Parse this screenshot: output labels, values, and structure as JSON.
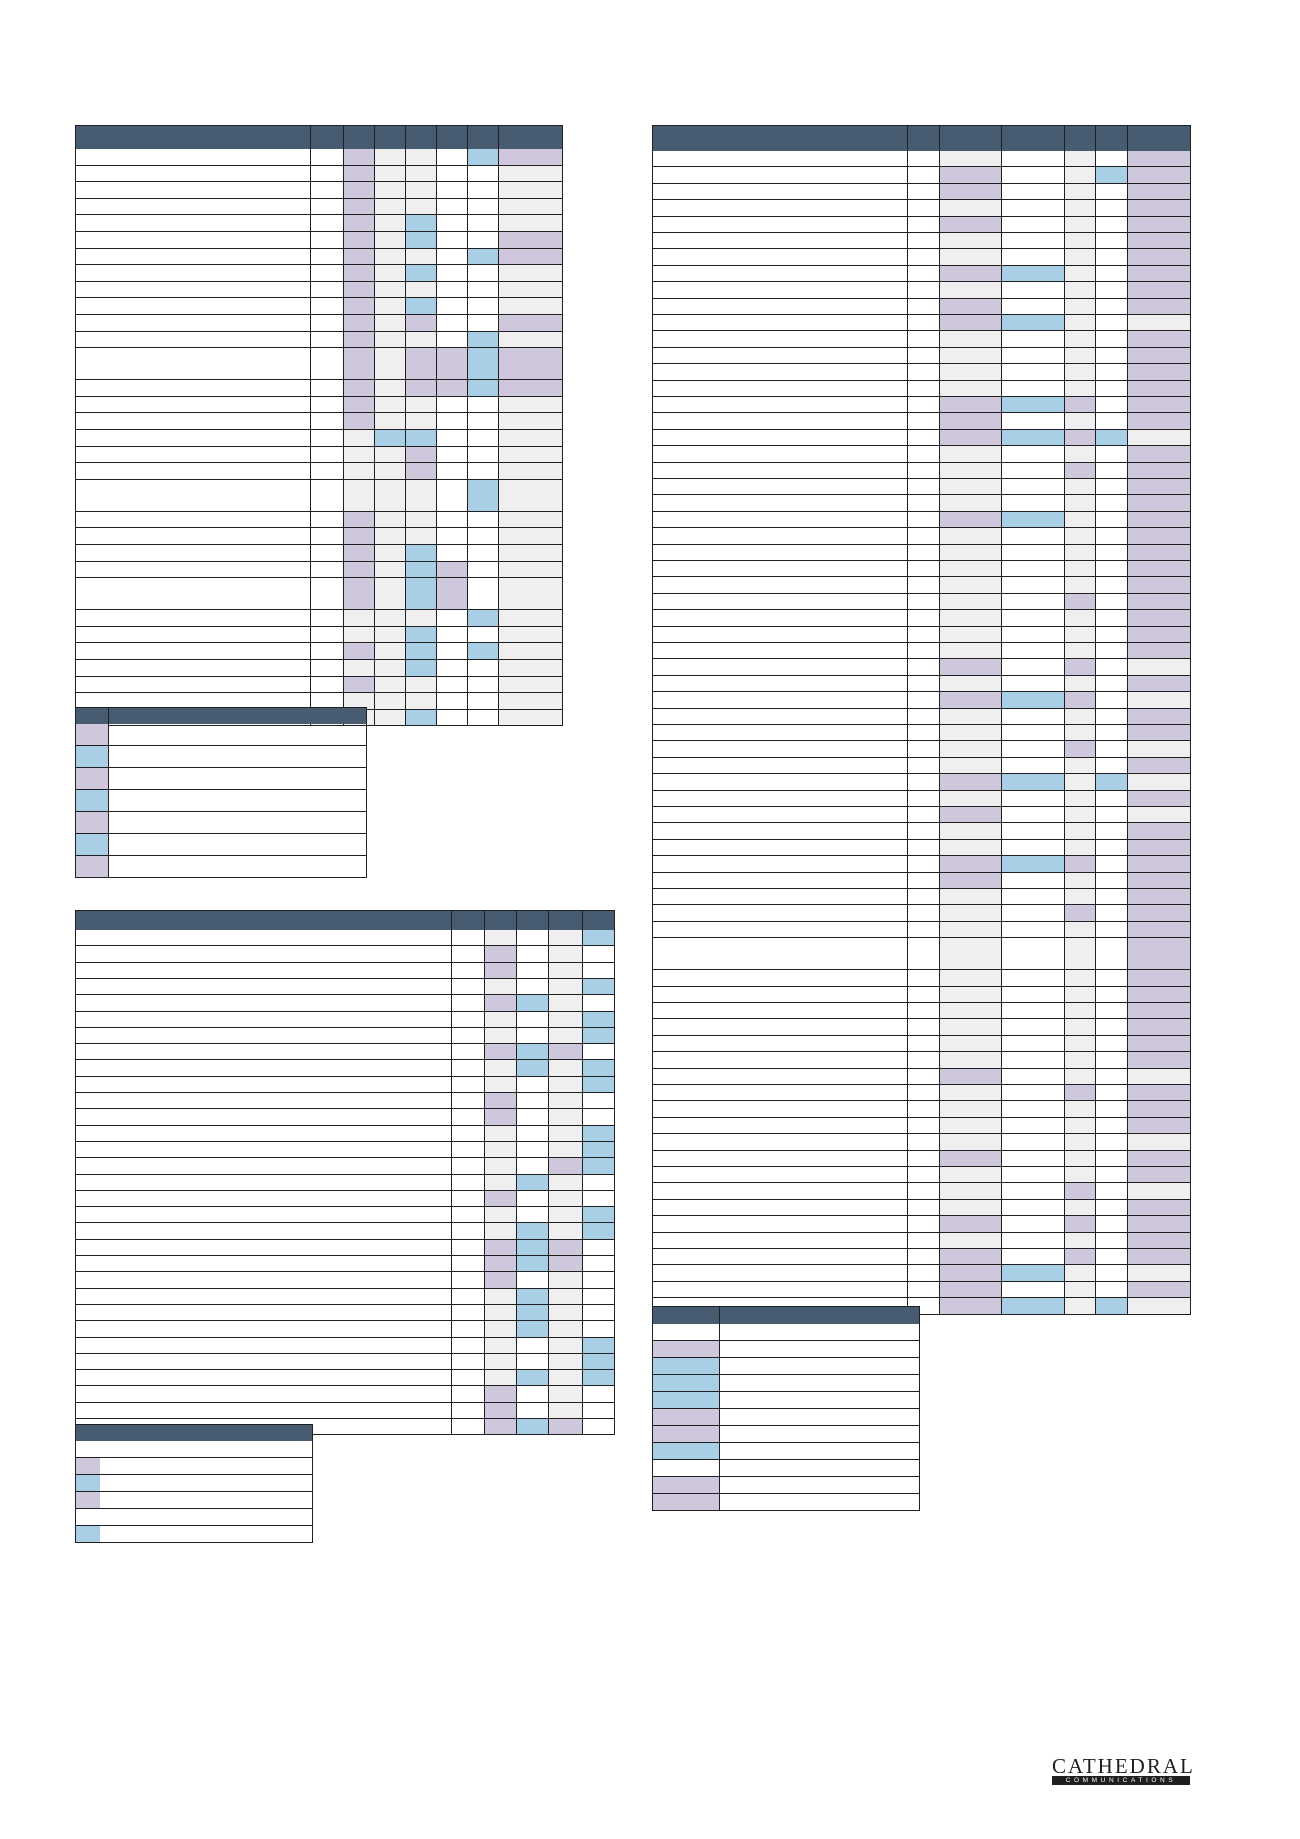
{
  "colors": {
    "header": "#475c70",
    "purple": "#cfc8dd",
    "blue": "#a9cfe6",
    "grey": "#efefef",
    "line": "#1f1f1f"
  },
  "tables": [
    {
      "name": "table-top-left",
      "rows": 32,
      "columns": 8,
      "cells": [
        [
          "",
          "",
          "P",
          "G",
          "G",
          "W",
          "B",
          "P"
        ],
        [
          "",
          "",
          "P",
          "G",
          "G",
          "W",
          "W",
          "G"
        ],
        [
          "",
          "",
          "P",
          "G",
          "G",
          "W",
          "W",
          "G"
        ],
        [
          "",
          "",
          "P",
          "G",
          "G",
          "W",
          "W",
          "G"
        ],
        [
          "",
          "",
          "P",
          "G",
          "B",
          "W",
          "W",
          "G"
        ],
        [
          "",
          "",
          "P",
          "G",
          "B",
          "W",
          "W",
          "P"
        ],
        [
          "",
          "",
          "P",
          "G",
          "G",
          "W",
          "B",
          "P"
        ],
        [
          "",
          "",
          "P",
          "G",
          "B",
          "W",
          "W",
          "G"
        ],
        [
          "",
          "",
          "P",
          "G",
          "G",
          "W",
          "W",
          "G"
        ],
        [
          "",
          "",
          "P",
          "G",
          "B",
          "W",
          "W",
          "G"
        ],
        [
          "",
          "",
          "P",
          "G",
          "P",
          "W",
          "W",
          "P"
        ],
        [
          "",
          "",
          "P",
          "G",
          "G",
          "W",
          "B",
          "G"
        ],
        [
          "",
          "",
          "P",
          "G",
          "P",
          "P",
          "B",
          "P"
        ],
        [
          "",
          "",
          "P",
          "G",
          "P",
          "P",
          "B",
          "P"
        ],
        [
          "",
          "",
          "P",
          "G",
          "G",
          "W",
          "W",
          "G"
        ],
        [
          "",
          "",
          "P",
          "G",
          "G",
          "W",
          "W",
          "G"
        ],
        [
          "",
          "",
          "G",
          "B",
          "B",
          "W",
          "W",
          "G"
        ],
        [
          "",
          "",
          "G",
          "G",
          "P",
          "W",
          "W",
          "G"
        ],
        [
          "",
          "",
          "G",
          "G",
          "P",
          "W",
          "W",
          "G"
        ],
        [
          "",
          "",
          "G",
          "G",
          "G",
          "W",
          "B",
          "G"
        ],
        [
          "",
          "",
          "P",
          "G",
          "G",
          "W",
          "W",
          "G"
        ],
        [
          "",
          "",
          "P",
          "G",
          "G",
          "W",
          "W",
          "G"
        ],
        [
          "",
          "",
          "P",
          "G",
          "B",
          "W",
          "W",
          "G"
        ],
        [
          "",
          "",
          "P",
          "G",
          "B",
          "P",
          "W",
          "G"
        ],
        [
          "",
          "",
          "P",
          "G",
          "B",
          "P",
          "W",
          "G"
        ],
        [
          "",
          "",
          "G",
          "G",
          "G",
          "W",
          "B",
          "G"
        ],
        [
          "",
          "",
          "G",
          "G",
          "B",
          "W",
          "W",
          "G"
        ],
        [
          "",
          "",
          "P",
          "G",
          "B",
          "W",
          "B",
          "G"
        ],
        [
          "",
          "",
          "G",
          "G",
          "B",
          "W",
          "W",
          "G"
        ],
        [
          "",
          "",
          "P",
          "G",
          "G",
          "W",
          "W",
          "G"
        ],
        [
          "",
          "",
          "G",
          "G",
          "G",
          "W",
          "W",
          "G"
        ],
        [
          "",
          "",
          "G",
          "G",
          "B",
          "W",
          "W",
          "G"
        ]
      ]
    }
  ],
  "legend_top_left": [
    "P",
    "B",
    "P",
    "B",
    "P",
    "B",
    "P"
  ],
  "table_bottom_left_cells": [
    [
      "",
      "",
      "G",
      "W",
      "G",
      "B"
    ],
    [
      "",
      "",
      "P",
      "W",
      "G",
      "W"
    ],
    [
      "",
      "",
      "P",
      "W",
      "G",
      "W"
    ],
    [
      "",
      "",
      "G",
      "W",
      "G",
      "B"
    ],
    [
      "",
      "",
      "P",
      "B",
      "G",
      "W"
    ],
    [
      "",
      "",
      "G",
      "W",
      "G",
      "B"
    ],
    [
      "",
      "",
      "G",
      "W",
      "G",
      "B"
    ],
    [
      "",
      "",
      "P",
      "B",
      "P",
      "W"
    ],
    [
      "",
      "",
      "G",
      "B",
      "G",
      "B"
    ],
    [
      "",
      "",
      "G",
      "W",
      "G",
      "B"
    ],
    [
      "",
      "",
      "P",
      "W",
      "G",
      "W"
    ],
    [
      "",
      "",
      "P",
      "W",
      "G",
      "W"
    ],
    [
      "",
      "",
      "G",
      "W",
      "G",
      "B"
    ],
    [
      "",
      "",
      "G",
      "W",
      "G",
      "B"
    ],
    [
      "",
      "",
      "G",
      "W",
      "P",
      "B"
    ],
    [
      "",
      "",
      "G",
      "B",
      "G",
      "W"
    ],
    [
      "",
      "",
      "P",
      "W",
      "G",
      "W"
    ],
    [
      "",
      "",
      "G",
      "W",
      "G",
      "B"
    ],
    [
      "",
      "",
      "G",
      "B",
      "G",
      "B"
    ],
    [
      "",
      "",
      "P",
      "B",
      "P",
      "W"
    ],
    [
      "",
      "",
      "P",
      "B",
      "P",
      "W"
    ],
    [
      "",
      "",
      "P",
      "W",
      "G",
      "W"
    ],
    [
      "",
      "",
      "G",
      "B",
      "G",
      "W"
    ],
    [
      "",
      "",
      "G",
      "B",
      "G",
      "W"
    ],
    [
      "",
      "",
      "G",
      "B",
      "G",
      "W"
    ],
    [
      "",
      "",
      "G",
      "W",
      "G",
      "B"
    ],
    [
      "",
      "",
      "G",
      "W",
      "G",
      "B"
    ],
    [
      "",
      "",
      "G",
      "B",
      "G",
      "B"
    ],
    [
      "",
      "",
      "P",
      "W",
      "G",
      "W"
    ],
    [
      "",
      "",
      "P",
      "W",
      "G",
      "W"
    ],
    [
      "",
      "",
      "P",
      "B",
      "P",
      "W"
    ]
  ],
  "legend_bottom_left": [
    "",
    "P",
    "B",
    "P",
    "",
    "B"
  ],
  "table_right_cells": [
    [
      "",
      "",
      "G",
      "W",
      "G",
      "W",
      "P"
    ],
    [
      "",
      "",
      "P",
      "W",
      "G",
      "B",
      "P"
    ],
    [
      "",
      "",
      "P",
      "W",
      "G",
      "W",
      "P"
    ],
    [
      "",
      "",
      "G",
      "W",
      "G",
      "W",
      "P"
    ],
    [
      "",
      "",
      "P",
      "W",
      "G",
      "W",
      "P"
    ],
    [
      "",
      "",
      "G",
      "W",
      "G",
      "W",
      "P"
    ],
    [
      "",
      "",
      "G",
      "W",
      "G",
      "W",
      "P"
    ],
    [
      "",
      "",
      "P",
      "B",
      "G",
      "W",
      "P"
    ],
    [
      "",
      "",
      "G",
      "W",
      "G",
      "W",
      "P"
    ],
    [
      "",
      "",
      "P",
      "W",
      "G",
      "W",
      "P"
    ],
    [
      "",
      "",
      "P",
      "B",
      "G",
      "W",
      "G"
    ],
    [
      "",
      "",
      "G",
      "W",
      "G",
      "W",
      "P"
    ],
    [
      "",
      "",
      "G",
      "W",
      "G",
      "W",
      "P"
    ],
    [
      "",
      "",
      "G",
      "W",
      "G",
      "W",
      "P"
    ],
    [
      "",
      "",
      "G",
      "W",
      "G",
      "W",
      "P"
    ],
    [
      "",
      "",
      "P",
      "B",
      "P",
      "W",
      "P"
    ],
    [
      "",
      "",
      "P",
      "W",
      "G",
      "W",
      "P"
    ],
    [
      "",
      "",
      "P",
      "B",
      "P",
      "B",
      "G"
    ],
    [
      "",
      "",
      "G",
      "W",
      "G",
      "W",
      "P"
    ],
    [
      "",
      "",
      "G",
      "W",
      "P",
      "W",
      "P"
    ],
    [
      "",
      "",
      "G",
      "W",
      "G",
      "W",
      "P"
    ],
    [
      "",
      "",
      "G",
      "W",
      "G",
      "W",
      "P"
    ],
    [
      "",
      "",
      "P",
      "B",
      "G",
      "W",
      "P"
    ],
    [
      "",
      "",
      "G",
      "W",
      "G",
      "W",
      "P"
    ],
    [
      "",
      "",
      "G",
      "W",
      "G",
      "W",
      "P"
    ],
    [
      "",
      "",
      "G",
      "W",
      "G",
      "W",
      "P"
    ],
    [
      "",
      "",
      "G",
      "W",
      "G",
      "W",
      "P"
    ],
    [
      "",
      "",
      "G",
      "W",
      "P",
      "W",
      "P"
    ],
    [
      "",
      "",
      "G",
      "W",
      "G",
      "W",
      "P"
    ],
    [
      "",
      "",
      "G",
      "W",
      "G",
      "W",
      "P"
    ],
    [
      "",
      "",
      "G",
      "W",
      "G",
      "W",
      "P"
    ],
    [
      "",
      "",
      "P",
      "W",
      "P",
      "W",
      "G"
    ],
    [
      "",
      "",
      "G",
      "W",
      "G",
      "W",
      "P"
    ],
    [
      "",
      "",
      "P",
      "B",
      "P",
      "W",
      "G"
    ],
    [
      "",
      "",
      "G",
      "W",
      "G",
      "W",
      "P"
    ],
    [
      "",
      "",
      "G",
      "W",
      "G",
      "W",
      "P"
    ],
    [
      "",
      "",
      "G",
      "W",
      "P",
      "W",
      "G"
    ],
    [
      "",
      "",
      "G",
      "W",
      "G",
      "W",
      "P"
    ],
    [
      "",
      "",
      "P",
      "B",
      "G",
      "B",
      "G"
    ],
    [
      "",
      "",
      "G",
      "W",
      "G",
      "W",
      "P"
    ],
    [
      "",
      "",
      "P",
      "W",
      "G",
      "W",
      "G"
    ],
    [
      "",
      "",
      "G",
      "W",
      "G",
      "W",
      "P"
    ],
    [
      "",
      "",
      "G",
      "W",
      "G",
      "W",
      "P"
    ],
    [
      "",
      "",
      "P",
      "B",
      "P",
      "W",
      "P"
    ],
    [
      "",
      "",
      "P",
      "W",
      "G",
      "W",
      "P"
    ],
    [
      "",
      "",
      "G",
      "W",
      "G",
      "W",
      "P"
    ],
    [
      "",
      "",
      "G",
      "W",
      "P",
      "W",
      "P"
    ],
    [
      "",
      "",
      "G",
      "W",
      "G",
      "W",
      "P"
    ],
    [
      "",
      "",
      "G",
      "W",
      "G",
      "W",
      "P"
    ],
    [
      "",
      "",
      "G",
      "W",
      "G",
      "W",
      "P"
    ],
    [
      "",
      "",
      "G",
      "W",
      "G",
      "W",
      "P"
    ],
    [
      "",
      "",
      "G",
      "W",
      "G",
      "W",
      "P"
    ],
    [
      "",
      "",
      "G",
      "W",
      "G",
      "W",
      "P"
    ],
    [
      "",
      "",
      "G",
      "W",
      "G",
      "W",
      "P"
    ],
    [
      "",
      "",
      "G",
      "W",
      "G",
      "W",
      "P"
    ],
    [
      "",
      "",
      "P",
      "W",
      "G",
      "W",
      "G"
    ],
    [
      "",
      "",
      "G",
      "W",
      "P",
      "W",
      "P"
    ],
    [
      "",
      "",
      "G",
      "W",
      "G",
      "W",
      "P"
    ],
    [
      "",
      "",
      "G",
      "W",
      "G",
      "W",
      "P"
    ],
    [
      "",
      "",
      "G",
      "W",
      "G",
      "W",
      "G"
    ],
    [
      "",
      "",
      "P",
      "W",
      "G",
      "W",
      "P"
    ],
    [
      "",
      "",
      "G",
      "W",
      "G",
      "W",
      "P"
    ],
    [
      "",
      "",
      "G",
      "W",
      "P",
      "W",
      "G"
    ],
    [
      "",
      "",
      "G",
      "W",
      "G",
      "W",
      "P"
    ],
    [
      "",
      "",
      "P",
      "W",
      "P",
      "W",
      "P"
    ],
    [
      "",
      "",
      "G",
      "W",
      "G",
      "W",
      "P"
    ],
    [
      "",
      "",
      "P",
      "W",
      "P",
      "W",
      "P"
    ],
    [
      "",
      "",
      "P",
      "B",
      "G",
      "W",
      "G"
    ],
    [
      "",
      "",
      "P",
      "W",
      "G",
      "W",
      "P"
    ],
    [
      "",
      "",
      "P",
      "B",
      "G",
      "B",
      "G"
    ]
  ],
  "legend_right": {
    "rows": [
      [
        "",
        "",
        ""
      ],
      [
        "P",
        "P",
        ""
      ],
      [
        "B",
        "B",
        ""
      ],
      [
        "B",
        "B",
        ""
      ],
      [
        "B",
        "B",
        ""
      ],
      [
        "P",
        "P",
        ""
      ],
      [
        "P",
        "P",
        ""
      ],
      [
        "B",
        "B",
        ""
      ],
      [
        "",
        "",
        ""
      ],
      [
        "P",
        "P",
        ""
      ],
      [
        "P",
        "P",
        ""
      ]
    ]
  },
  "logo": {
    "name": "CATHEDRAL",
    "tagline": "COMMUNICATIONS"
  }
}
